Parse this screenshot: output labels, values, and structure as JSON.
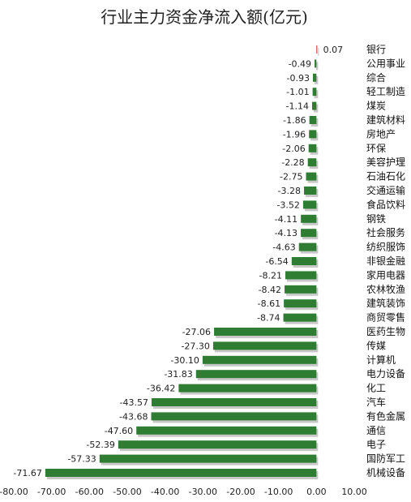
{
  "chart_data": {
    "type": "bar",
    "orientation": "horizontal",
    "title": "行业主力资金净流入额(亿元)",
    "categories": [
      "银行",
      "公用事业",
      "综合",
      "轻工制造",
      "煤炭",
      "建筑材料",
      "房地产",
      "环保",
      "美容护理",
      "石油石化",
      "交通运输",
      "食品饮料",
      "钢铁",
      "社会服务",
      "纺织服饰",
      "非银金融",
      "家用电器",
      "农林牧渔",
      "建筑装饰",
      "商贸零售",
      "医药生物",
      "传媒",
      "计算机",
      "电力设备",
      "化工",
      "汽车",
      "有色金属",
      "通信",
      "电子",
      "国防军工",
      "机械设备"
    ],
    "values": [
      0.07,
      -0.49,
      -0.93,
      -1.01,
      -1.14,
      -1.86,
      -1.96,
      -2.06,
      -2.28,
      -2.75,
      -3.28,
      -3.52,
      -4.11,
      -4.13,
      -4.63,
      -6.54,
      -8.21,
      -8.42,
      -8.61,
      -8.74,
      -27.06,
      -27.3,
      -30.1,
      -31.83,
      -36.42,
      -43.57,
      -43.68,
      -47.6,
      -52.39,
      -57.33,
      -71.67
    ],
    "value_labels": [
      "0.07",
      "-0.49",
      "-0.93",
      "-1.01",
      "-1.14",
      "-1.86",
      "-1.96",
      "-2.06",
      "-2.28",
      "-2.75",
      "-3.28",
      "-3.52",
      "-4.11",
      "-4.13",
      "-4.63",
      "-6.54",
      "-8.21",
      "-8.42",
      "-8.61",
      "-8.74",
      "-27.06",
      "-27.30",
      "-30.10",
      "-31.83",
      "-36.42",
      "-43.57",
      "-43.68",
      "-47.60",
      "-52.39",
      "-57.33",
      "-71.67"
    ],
    "xlim": [
      -80,
      10
    ],
    "x_ticks": [
      -80,
      -70,
      -60,
      -50,
      -40,
      -30,
      -20,
      -10,
      0,
      10
    ],
    "x_tick_labels": [
      "-80.00",
      "-70.00",
      "-60.00",
      "-50.00",
      "-40.00",
      "-30.00",
      "-20.00",
      "-10.00",
      "0.00",
      "10.00"
    ],
    "grid": false,
    "colors": {
      "negative": "#2e7d32",
      "positive": "#c62828",
      "shadow": "#c8c8c8"
    }
  }
}
